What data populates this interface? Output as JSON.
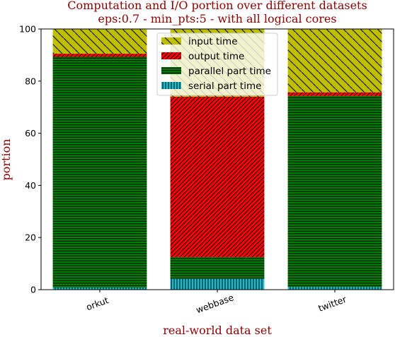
{
  "chart_data": {
    "type": "bar",
    "stacked": true,
    "title_lines": [
      "Computation and I/O portion over different datasets",
      "eps:0.7 - min_pts:5 - with all logical cores"
    ],
    "xlabel": "real-world data set",
    "ylabel": "portion",
    "categories": [
      "orkut",
      "webbase",
      "twitter"
    ],
    "ylim": [
      0,
      100
    ],
    "yticks": [
      0,
      20,
      40,
      60,
      80,
      100
    ],
    "series": [
      {
        "name": "serial part time",
        "values": [
          0.8,
          4.2,
          1.0
        ],
        "color": "#17becf",
        "hatch": "vertical"
      },
      {
        "name": "parallel part time",
        "values": [
          88.5,
          8.3,
          73.3
        ],
        "color": "#008000",
        "hatch": "horizontal"
      },
      {
        "name": "output time",
        "values": [
          1.2,
          61.5,
          1.4
        ],
        "color": "#ff0000",
        "hatch": "diagonal"
      },
      {
        "name": "input time",
        "values": [
          9.5,
          26.0,
          24.3
        ],
        "color": "#bfbf00",
        "hatch": "backslash"
      }
    ],
    "legend_order": [
      "input time",
      "output time",
      "parallel part time",
      "serial part time"
    ],
    "legend_position": "top-center"
  }
}
